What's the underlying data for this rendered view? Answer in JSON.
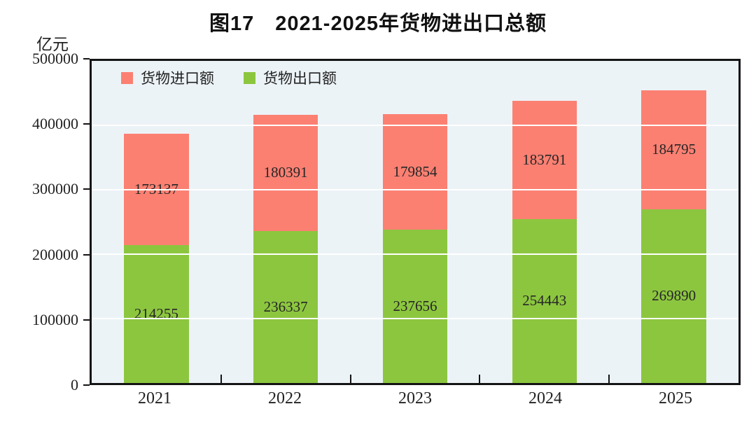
{
  "title": "图17　2021-2025年货物进出口总额",
  "unit_label": "亿元",
  "legend": [
    {
      "label": "货物进口额",
      "color": "#FB8072",
      "key": "import"
    },
    {
      "label": "货物出口额",
      "color": "#8CC63F",
      "key": "export"
    }
  ],
  "colors": {
    "import_bar": "#FB8072",
    "export_bar": "#8CC63F",
    "plot_background": "#ECF3F7",
    "plot_border": "#141414",
    "gridline": "#FFFFFF",
    "text": "#262626"
  },
  "chart_data": {
    "type": "bar",
    "stacked": true,
    "title": "图17 2021-2025年货物进出口总额",
    "ylabel": "亿元",
    "categories": [
      "2021",
      "2022",
      "2023",
      "2024",
      "2025"
    ],
    "series": [
      {
        "name": "货物出口额",
        "color": "#8CC63F",
        "values": [
          214255,
          236337,
          237656,
          254443,
          269890
        ]
      },
      {
        "name": "货物进口额",
        "color": "#FB8072",
        "values": [
          173137,
          180391,
          179854,
          183791,
          184795
        ]
      }
    ],
    "ylim": [
      0,
      500000
    ],
    "y_ticks": [
      0,
      100000,
      200000,
      300000,
      400000,
      500000
    ],
    "grid": "horizontal-white-over-bars",
    "legend_position": "top-left-inside",
    "bar_value_labels": "centered-inside-segments"
  }
}
